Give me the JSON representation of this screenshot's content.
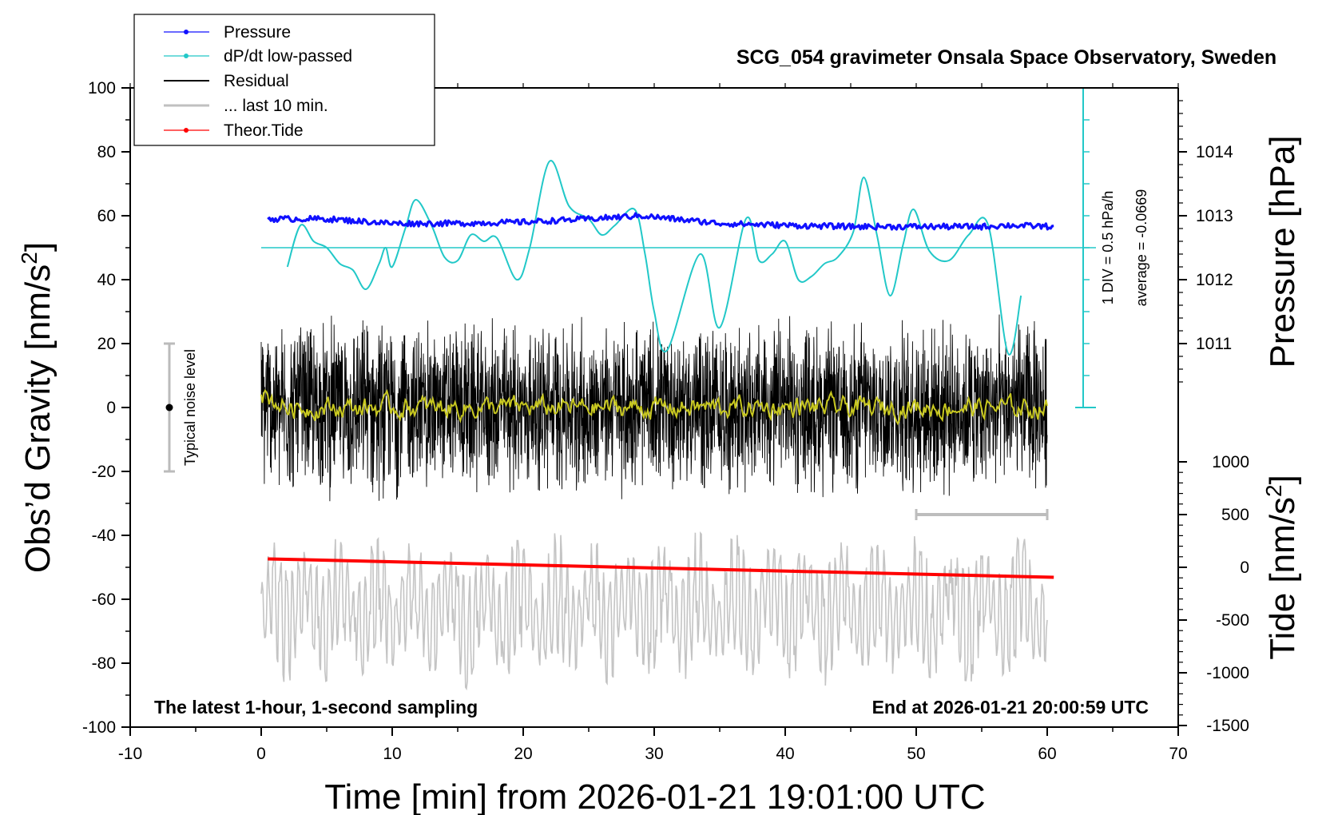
{
  "chart_data": {
    "type": "line",
    "title": "SCG_054 gravimeter Onsala Space Observatory, Sweden",
    "xlabel": "Time [min] from 2026-01-21 19:01:00 UTC",
    "ylabel_left": "Obs’d Gravity [nm/s",
    "ylabel_left_sup": "2",
    "ylabel_left_close": "]",
    "ylabel_right_pressure": "Pressure [hPa]",
    "ylabel_right_tide": "Tide [nm/s",
    "ylabel_right_tide_sup": "2",
    "ylabel_right_tide_close": "]",
    "xlim": [
      -10,
      70
    ],
    "ylim": [
      -100,
      100
    ],
    "x_ticks": [
      "-10",
      "0",
      "10",
      "20",
      "30",
      "40",
      "50",
      "60",
      "70"
    ],
    "y_ticks": [
      "100",
      "80",
      "60",
      "40",
      "20",
      "0",
      "-20",
      "-40",
      "-60",
      "-80",
      "-100"
    ],
    "pressure_ticks": [
      "1014",
      "1013",
      "1012",
      "1011"
    ],
    "pressure_tick_values": [
      1014,
      1013,
      1012,
      1011
    ],
    "tide_ticks": [
      "1000",
      "500",
      "0",
      "-500",
      "-1000",
      "-1500"
    ],
    "tide_tick_values": [
      1000,
      500,
      0,
      -500,
      -1000,
      -1500
    ],
    "legend": {
      "position": "top-left",
      "entries": [
        "Pressure",
        "dP/dt low-passed",
        "Residual",
        "... last 10 min.",
        "Theor.Tide"
      ]
    },
    "annotations": {
      "noise": "Typical noise level",
      "div": "1 DIV = 0.5 hPa/h",
      "average": "average = -0.0669",
      "bottom_left": "The latest 1-hour, 1-second sampling",
      "bottom_right": "End at 2026-01-21 20:00:59 UTC"
    },
    "series": [
      {
        "name": "Pressure",
        "axis": "pressure",
        "x": [
          0.5,
          5,
          10,
          15,
          20,
          25,
          29,
          35,
          40,
          45,
          50,
          55,
          57,
          60.5
        ],
        "y": [
          1012.95,
          1012.95,
          1012.88,
          1012.88,
          1012.9,
          1012.95,
          1013.0,
          1012.88,
          1012.85,
          1012.83,
          1012.83,
          1012.83,
          1012.85,
          1012.83
        ]
      },
      {
        "name": "dP/dt low-passed",
        "axis": "gravity",
        "x": [
          2,
          3,
          4,
          5,
          6,
          7,
          8,
          9,
          9.5,
          10,
          11,
          11.8,
          13,
          14,
          15,
          16,
          17,
          18,
          19.5,
          20.5,
          22,
          23.5,
          25,
          26,
          27,
          28.5,
          29.3,
          30,
          31,
          33.5,
          35,
          37,
          38,
          39,
          40,
          41,
          42,
          43,
          44,
          45.2,
          46,
          47,
          48,
          49,
          49.8,
          51,
          52.5,
          54,
          55.5,
          57,
          58
        ],
        "y": [
          44,
          57,
          52,
          50,
          45,
          43,
          37,
          45,
          50,
          44,
          56,
          65,
          57,
          47,
          46,
          54,
          52,
          53,
          40,
          50,
          77,
          63,
          59,
          54,
          57,
          62,
          48,
          30,
          18,
          48,
          25,
          59,
          46,
          48,
          52,
          40,
          41,
          45,
          47,
          55,
          72,
          54,
          35,
          51,
          62,
          49,
          46,
          54,
          57,
          17,
          35
        ]
      },
      {
        "name": "Residual",
        "axis": "gravity",
        "range_min": [
          0,
          60
        ],
        "amplitude_nm_s2": 30
      },
      {
        "name": "... last 10 min.",
        "axis": "tide",
        "x": [
          50,
          60
        ],
        "y": [
          500,
          500
        ]
      },
      {
        "name": "Theor.Tide",
        "axis": "tide",
        "x": [
          0.5,
          60.5
        ],
        "y": [
          80,
          -95
        ]
      }
    ],
    "background_traces": {
      "yellow_smoothed_residual": "around 0",
      "gray_tide_oscillation": "around -65"
    },
    "colors": {
      "pressure": "#1010ff",
      "dpdt": "#22c8c8",
      "residual": "#000000",
      "last10": "#c0c0c0",
      "tide": "#ff0000",
      "smoothed": "#c8c820"
    }
  }
}
